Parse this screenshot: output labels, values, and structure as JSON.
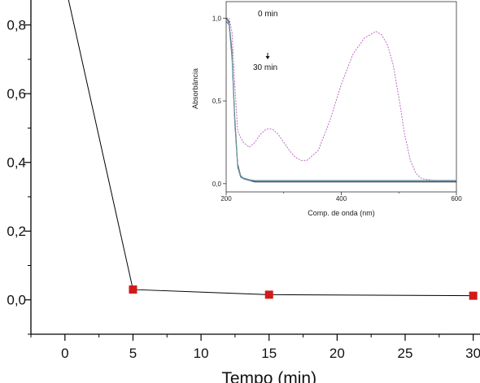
{
  "chart_data": [
    {
      "type": "scatter",
      "title": "",
      "xlabel": "Tempo (min)",
      "ylabel": "",
      "xlim": [
        -2.5,
        30.5
      ],
      "ylim": [
        -0.1,
        0.92
      ],
      "xticks": [
        0,
        5,
        10,
        15,
        20,
        25,
        30
      ],
      "yticks": [
        0.0,
        0.2,
        0.4,
        0.6,
        0.8
      ],
      "x_tick_labels": [
        "0",
        "5",
        "10",
        "15",
        "20",
        "25",
        "30"
      ],
      "y_tick_labels": [
        "0,0",
        "0,2",
        "0,4",
        "0,6",
        "0,8"
      ],
      "grid": false,
      "series": [
        {
          "marker": "square",
          "color": "#d11a1a",
          "line_color": "#000000",
          "x": [
            0,
            5,
            15,
            30
          ],
          "y": [
            0.92,
            0.03,
            0.015,
            0.012
          ]
        }
      ]
    },
    {
      "type": "line",
      "title": "",
      "xlabel": "Comp. de onda (nm)",
      "ylabel": "Absorbância",
      "xlim": [
        200,
        600
      ],
      "ylim": [
        -0.05,
        1.1
      ],
      "xticks": [
        200,
        400,
        600
      ],
      "yticks": [
        0.0,
        0.5,
        1.0
      ],
      "x_tick_labels": [
        "200",
        "400",
        "600"
      ],
      "y_tick_labels": [
        "0,0",
        "0,5",
        "1,0"
      ],
      "grid": false,
      "annotations": [
        "0 min",
        "30 min"
      ],
      "series": [
        {
          "color": "#b75bc0",
          "x": [
            200,
            205,
            210,
            215,
            220,
            225,
            230,
            240,
            250,
            260,
            270,
            280,
            290,
            300,
            310,
            320,
            330,
            340,
            360,
            380,
            400,
            420,
            440,
            460,
            470,
            480,
            490,
            500,
            510,
            520,
            530,
            540,
            560,
            580,
            600
          ],
          "y": [
            1.0,
            1.0,
            0.92,
            0.6,
            0.32,
            0.28,
            0.25,
            0.22,
            0.25,
            0.3,
            0.33,
            0.33,
            0.3,
            0.25,
            0.2,
            0.16,
            0.14,
            0.14,
            0.2,
            0.38,
            0.6,
            0.78,
            0.88,
            0.92,
            0.9,
            0.84,
            0.72,
            0.52,
            0.3,
            0.14,
            0.06,
            0.03,
            0.02,
            0.02,
            0.02
          ]
        },
        {
          "color": "#222222",
          "x": [
            200,
            205,
            210,
            215,
            220,
            225,
            230,
            240,
            250,
            300,
            350,
            400,
            500,
            600
          ],
          "y": [
            1.0,
            0.98,
            0.8,
            0.4,
            0.12,
            0.05,
            0.03,
            0.02,
            0.01,
            0.01,
            0.01,
            0.01,
            0.01,
            0.01
          ]
        },
        {
          "color": "#4a5a9a",
          "x": [
            200,
            205,
            210,
            215,
            220,
            225,
            230,
            240,
            250,
            300,
            350,
            400,
            500,
            600
          ],
          "y": [
            0.98,
            0.96,
            0.76,
            0.36,
            0.1,
            0.04,
            0.03,
            0.02,
            0.015,
            0.015,
            0.015,
            0.015,
            0.015,
            0.015
          ]
        },
        {
          "color": "#6aa7a0",
          "x": [
            200,
            205,
            210,
            215,
            220,
            225,
            230,
            240,
            250,
            300,
            350,
            400,
            500,
            600
          ],
          "y": [
            0.99,
            0.97,
            0.78,
            0.38,
            0.11,
            0.045,
            0.035,
            0.025,
            0.02,
            0.02,
            0.02,
            0.02,
            0.02,
            0.02
          ]
        }
      ]
    }
  ]
}
